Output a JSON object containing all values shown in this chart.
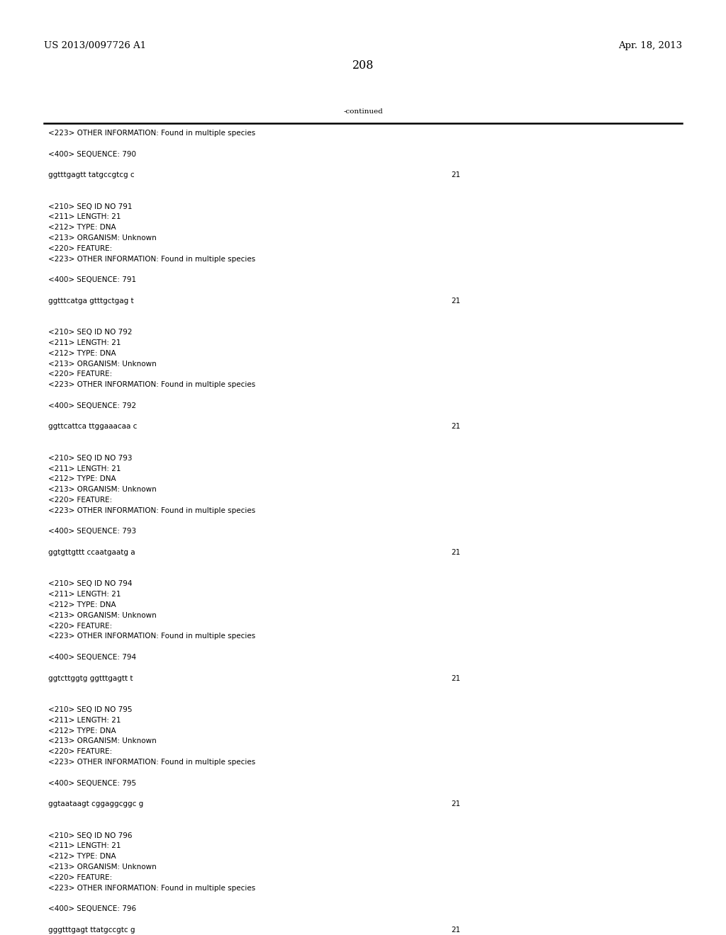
{
  "background_color": "#ffffff",
  "header_left": "US 2013/0097726 A1",
  "header_right": "Apr. 18, 2013",
  "page_number": "208",
  "continued_label": "-continued",
  "font_size_header": 9.5,
  "font_size_body": 7.5,
  "font_size_page_num": 11.5,
  "monospace_font": "Courier New",
  "serif_font": "DejaVu Serif",
  "content_lines": [
    {
      "text": "<223> OTHER INFORMATION: Found in multiple species",
      "num": null
    },
    {
      "text": "",
      "num": null
    },
    {
      "text": "<400> SEQUENCE: 790",
      "num": null
    },
    {
      "text": "",
      "num": null
    },
    {
      "text": "ggtttgagtt tatgccgtcg c",
      "num": "21"
    },
    {
      "text": "",
      "num": null
    },
    {
      "text": "",
      "num": null
    },
    {
      "text": "<210> SEQ ID NO 791",
      "num": null
    },
    {
      "text": "<211> LENGTH: 21",
      "num": null
    },
    {
      "text": "<212> TYPE: DNA",
      "num": null
    },
    {
      "text": "<213> ORGANISM: Unknown",
      "num": null
    },
    {
      "text": "<220> FEATURE:",
      "num": null
    },
    {
      "text": "<223> OTHER INFORMATION: Found in multiple species",
      "num": null
    },
    {
      "text": "",
      "num": null
    },
    {
      "text": "<400> SEQUENCE: 791",
      "num": null
    },
    {
      "text": "",
      "num": null
    },
    {
      "text": "ggtttcatga gtttgctgag t",
      "num": "21"
    },
    {
      "text": "",
      "num": null
    },
    {
      "text": "",
      "num": null
    },
    {
      "text": "<210> SEQ ID NO 792",
      "num": null
    },
    {
      "text": "<211> LENGTH: 21",
      "num": null
    },
    {
      "text": "<212> TYPE: DNA",
      "num": null
    },
    {
      "text": "<213> ORGANISM: Unknown",
      "num": null
    },
    {
      "text": "<220> FEATURE:",
      "num": null
    },
    {
      "text": "<223> OTHER INFORMATION: Found in multiple species",
      "num": null
    },
    {
      "text": "",
      "num": null
    },
    {
      "text": "<400> SEQUENCE: 792",
      "num": null
    },
    {
      "text": "",
      "num": null
    },
    {
      "text": "ggttcattca ttggaaacaa c",
      "num": "21"
    },
    {
      "text": "",
      "num": null
    },
    {
      "text": "",
      "num": null
    },
    {
      "text": "<210> SEQ ID NO 793",
      "num": null
    },
    {
      "text": "<211> LENGTH: 21",
      "num": null
    },
    {
      "text": "<212> TYPE: DNA",
      "num": null
    },
    {
      "text": "<213> ORGANISM: Unknown",
      "num": null
    },
    {
      "text": "<220> FEATURE:",
      "num": null
    },
    {
      "text": "<223> OTHER INFORMATION: Found in multiple species",
      "num": null
    },
    {
      "text": "",
      "num": null
    },
    {
      "text": "<400> SEQUENCE: 793",
      "num": null
    },
    {
      "text": "",
      "num": null
    },
    {
      "text": "ggtgttgttt ccaatgaatg a",
      "num": "21"
    },
    {
      "text": "",
      "num": null
    },
    {
      "text": "",
      "num": null
    },
    {
      "text": "<210> SEQ ID NO 794",
      "num": null
    },
    {
      "text": "<211> LENGTH: 21",
      "num": null
    },
    {
      "text": "<212> TYPE: DNA",
      "num": null
    },
    {
      "text": "<213> ORGANISM: Unknown",
      "num": null
    },
    {
      "text": "<220> FEATURE:",
      "num": null
    },
    {
      "text": "<223> OTHER INFORMATION: Found in multiple species",
      "num": null
    },
    {
      "text": "",
      "num": null
    },
    {
      "text": "<400> SEQUENCE: 794",
      "num": null
    },
    {
      "text": "",
      "num": null
    },
    {
      "text": "ggtcttggtg ggtttgagtt t",
      "num": "21"
    },
    {
      "text": "",
      "num": null
    },
    {
      "text": "",
      "num": null
    },
    {
      "text": "<210> SEQ ID NO 795",
      "num": null
    },
    {
      "text": "<211> LENGTH: 21",
      "num": null
    },
    {
      "text": "<212> TYPE: DNA",
      "num": null
    },
    {
      "text": "<213> ORGANISM: Unknown",
      "num": null
    },
    {
      "text": "<220> FEATURE:",
      "num": null
    },
    {
      "text": "<223> OTHER INFORMATION: Found in multiple species",
      "num": null
    },
    {
      "text": "",
      "num": null
    },
    {
      "text": "<400> SEQUENCE: 795",
      "num": null
    },
    {
      "text": "",
      "num": null
    },
    {
      "text": "ggtaataagt cggaggcggc g",
      "num": "21"
    },
    {
      "text": "",
      "num": null
    },
    {
      "text": "",
      "num": null
    },
    {
      "text": "<210> SEQ ID NO 796",
      "num": null
    },
    {
      "text": "<211> LENGTH: 21",
      "num": null
    },
    {
      "text": "<212> TYPE: DNA",
      "num": null
    },
    {
      "text": "<213> ORGANISM: Unknown",
      "num": null
    },
    {
      "text": "<220> FEATURE:",
      "num": null
    },
    {
      "text": "<223> OTHER INFORMATION: Found in multiple species",
      "num": null
    },
    {
      "text": "",
      "num": null
    },
    {
      "text": "<400> SEQUENCE: 796",
      "num": null
    },
    {
      "text": "",
      "num": null
    },
    {
      "text": "gggtttgagt ttatgccgtc g",
      "num": "21"
    }
  ]
}
